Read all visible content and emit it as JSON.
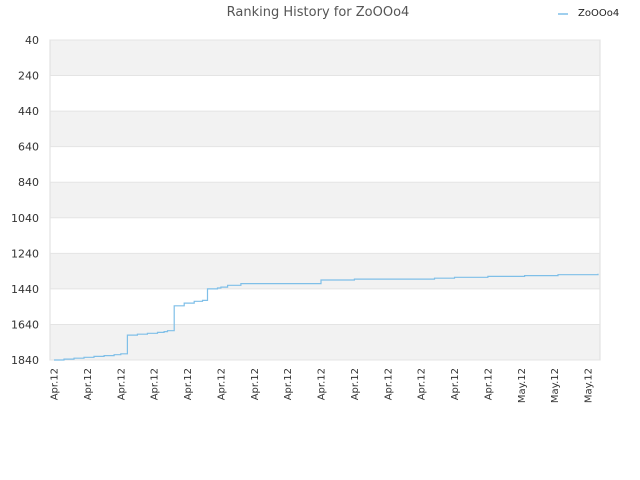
{
  "chart_data": {
    "type": "line",
    "title": "Ranking History for ZoOOo4",
    "xlabel": "",
    "ylabel": "",
    "y_inverted": true,
    "ylim": [
      40,
      1840
    ],
    "y_ticks": [
      "40",
      "240",
      "440",
      "640",
      "840",
      "1040",
      "1240",
      "1440",
      "1640",
      "1840"
    ],
    "x_tick_labels": [
      "Apr.12",
      "Apr.12",
      "Apr.12",
      "Apr.12",
      "Apr.12",
      "Apr.12",
      "Apr.12",
      "Apr.12",
      "Apr.12",
      "Apr.12",
      "Apr.12",
      "Apr.12",
      "Apr.12",
      "Apr.12",
      "May.12",
      "May.12",
      "May.12"
    ],
    "legend": {
      "position": "top-right"
    },
    "grid": true,
    "band_colors": [
      "#f2f2f2",
      "#ffffff"
    ],
    "series": [
      {
        "name": "ZoOOo4",
        "color": "#7fbfe8",
        "step": true,
        "x": [
          0.0,
          0.3,
          0.6,
          0.9,
          1.2,
          1.5,
          1.8,
          2.0,
          2.1,
          2.2,
          2.5,
          2.8,
          3.1,
          3.3,
          3.4,
          3.6,
          3.9,
          4.2,
          4.45,
          4.6,
          4.9,
          5.0,
          5.2,
          5.6,
          6.0,
          6.5,
          7.0,
          7.5,
          7.99,
          8.0,
          8.5,
          8.9,
          9.0,
          10.0,
          10.6,
          11.4,
          12.0,
          13.0,
          13.4,
          13.9,
          14.1,
          15.0,
          15.1,
          16.3
        ],
        "values": [
          1840,
          1835,
          1830,
          1825,
          1820,
          1815,
          1810,
          1805,
          1805,
          1700,
          1695,
          1690,
          1685,
          1680,
          1675,
          1535,
          1520,
          1510,
          1505,
          1440,
          1435,
          1430,
          1420,
          1410,
          1410,
          1410,
          1410,
          1410,
          1410,
          1390,
          1390,
          1390,
          1385,
          1385,
          1385,
          1380,
          1375,
          1370,
          1370,
          1370,
          1365,
          1365,
          1360,
          1355
        ]
      }
    ]
  }
}
